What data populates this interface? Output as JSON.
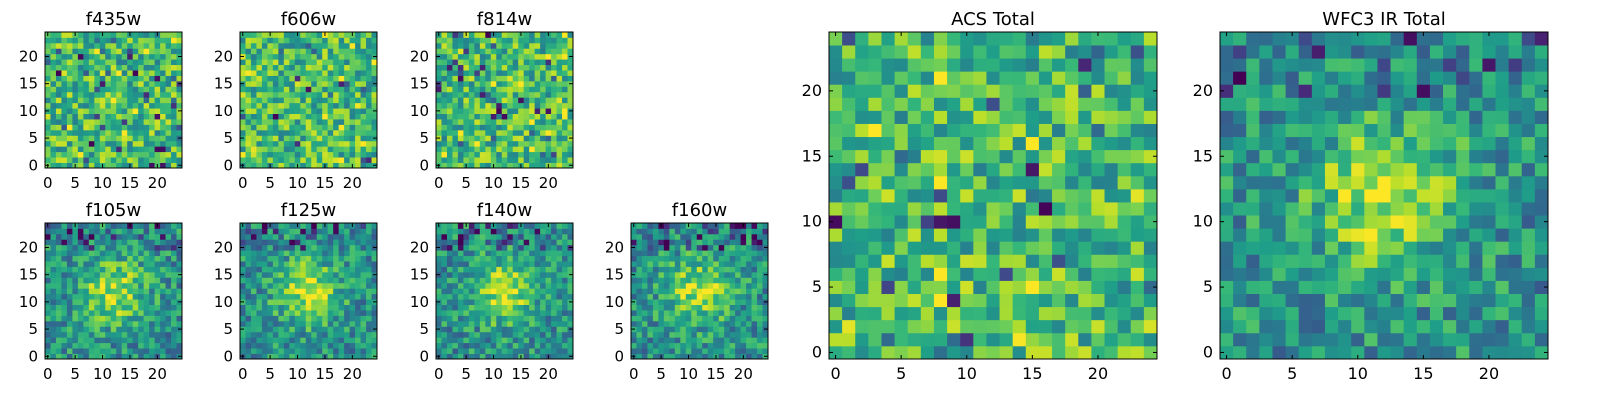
{
  "colormap": "viridis",
  "panel_titles": {
    "f435w": "f435w",
    "f606w": "f606w",
    "f814w": "f814w",
    "f105w": "f105w",
    "f125w": "f125w",
    "f140w": "f140w",
    "f160w": "f160w",
    "acs_total": "ACS Total",
    "wfc3_ir_total": "WFC3 IR Total"
  },
  "chart_data": [
    {
      "type": "heatmap",
      "title": "f435w",
      "size": [
        25,
        25
      ],
      "x_ticks": [
        0,
        5,
        10,
        15,
        20
      ],
      "y_ticks": [
        0,
        5,
        10,
        15,
        20
      ],
      "xlim": [
        -0.5,
        24.5
      ],
      "ylim": [
        -0.5,
        24.5
      ],
      "pattern": "noise"
    },
    {
      "type": "heatmap",
      "title": "f606w",
      "size": [
        25,
        25
      ],
      "x_ticks": [
        0,
        5,
        10,
        15,
        20
      ],
      "y_ticks": [
        0,
        5,
        10,
        15,
        20
      ],
      "xlim": [
        -0.5,
        24.5
      ],
      "ylim": [
        -0.5,
        24.5
      ],
      "pattern": "noise"
    },
    {
      "type": "heatmap",
      "title": "f814w",
      "size": [
        25,
        25
      ],
      "x_ticks": [
        0,
        5,
        10,
        15,
        20
      ],
      "y_ticks": [
        0,
        5,
        10,
        15,
        20
      ],
      "xlim": [
        -0.5,
        24.5
      ],
      "ylim": [
        -0.5,
        24.5
      ],
      "pattern": "noise"
    },
    {
      "type": "heatmap",
      "title": "f105w",
      "size": [
        25,
        25
      ],
      "x_ticks": [
        0,
        5,
        10,
        15,
        20
      ],
      "y_ticks": [
        0,
        5,
        10,
        15,
        20
      ],
      "xlim": [
        -0.5,
        24.5
      ],
      "ylim": [
        -0.5,
        24.5
      ],
      "pattern": "central-source"
    },
    {
      "type": "heatmap",
      "title": "f125w",
      "size": [
        25,
        25
      ],
      "x_ticks": [
        0,
        5,
        10,
        15,
        20
      ],
      "y_ticks": [
        0,
        5,
        10,
        15,
        20
      ],
      "xlim": [
        -0.5,
        24.5
      ],
      "ylim": [
        -0.5,
        24.5
      ],
      "pattern": "central-source"
    },
    {
      "type": "heatmap",
      "title": "f140w",
      "size": [
        25,
        25
      ],
      "x_ticks": [
        0,
        5,
        10,
        15,
        20
      ],
      "y_ticks": [
        0,
        5,
        10,
        15,
        20
      ],
      "xlim": [
        -0.5,
        24.5
      ],
      "ylim": [
        -0.5,
        24.5
      ],
      "pattern": "central-source"
    },
    {
      "type": "heatmap",
      "title": "f160w",
      "size": [
        25,
        25
      ],
      "x_ticks": [
        0,
        5,
        10,
        15,
        20
      ],
      "y_ticks": [
        0,
        5,
        10,
        15,
        20
      ],
      "xlim": [
        -0.5,
        24.5
      ],
      "ylim": [
        -0.5,
        24.5
      ],
      "pattern": "central-source"
    },
    {
      "type": "heatmap",
      "title": "ACS Total",
      "size": [
        25,
        25
      ],
      "x_ticks": [
        0,
        5,
        10,
        15,
        20
      ],
      "y_ticks": [
        0,
        5,
        10,
        15,
        20
      ],
      "xlim": [
        -0.5,
        24.5
      ],
      "ylim": [
        -0.5,
        24.5
      ],
      "pattern": "noise"
    },
    {
      "type": "heatmap",
      "title": "WFC3 IR Total",
      "size": [
        25,
        25
      ],
      "x_ticks": [
        0,
        5,
        10,
        15,
        20
      ],
      "y_ticks": [
        0,
        5,
        10,
        15,
        20
      ],
      "xlim": [
        -0.5,
        24.5
      ],
      "ylim": [
        -0.5,
        24.5
      ],
      "pattern": "central-source"
    }
  ]
}
